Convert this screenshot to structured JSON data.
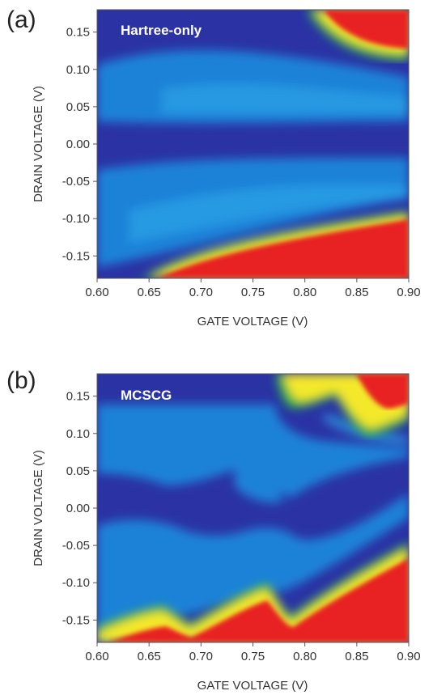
{
  "chart_data": [
    {
      "type": "heatmap",
      "panel": "(a)",
      "annotation": "Hartree-only",
      "xlabel": "GATE VOLTAGE (V)",
      "ylabel": "DRAIN VOLTAGE (V)",
      "xlim": [
        0.6,
        0.9
      ],
      "ylim": [
        -0.18,
        0.18
      ],
      "xticks": [
        0.6,
        0.65,
        0.7,
        0.75,
        0.8,
        0.85,
        0.9
      ],
      "xtick_labels": [
        "0.60",
        "0.65",
        "0.70",
        "0.75",
        "0.80",
        "0.85",
        "0.90"
      ],
      "yticks": [
        0.15,
        0.1,
        0.05,
        0.0,
        -0.05,
        -0.1,
        -0.15
      ],
      "ytick_labels": [
        "0.15",
        "0.10",
        "0.05",
        "0.00",
        "-0.05",
        "-0.10",
        "-0.15"
      ],
      "colormap": [
        "#2a2e9e",
        "#1e63cf",
        "#22a6e8",
        "#1fb34a",
        "#f4e82a",
        "#e8201f"
      ],
      "grid": false,
      "boundaries": {
        "lower_edge": {
          "x": [
            0.6,
            0.63,
            0.65,
            0.7,
            0.75,
            0.8,
            0.85,
            0.9
          ],
          "y": [
            -0.175,
            -0.165,
            -0.15,
            -0.128,
            -0.117,
            -0.107,
            -0.098,
            -0.09
          ]
        },
        "upper_edge": {
          "x": [
            0.81,
            0.83,
            0.85,
            0.87,
            0.9
          ],
          "y": [
            0.18,
            0.155,
            0.135,
            0.12,
            0.11
          ]
        }
      }
    },
    {
      "type": "heatmap",
      "panel": "(b)",
      "annotation": "MCSCG",
      "xlabel": "GATE VOLTAGE (V)",
      "ylabel": "DRAIN VOLTAGE (V)",
      "xlim": [
        0.6,
        0.9
      ],
      "ylim": [
        -0.18,
        0.18
      ],
      "xticks": [
        0.6,
        0.65,
        0.7,
        0.75,
        0.8,
        0.85,
        0.9
      ],
      "xtick_labels": [
        "0.60",
        "0.65",
        "0.70",
        "0.75",
        "0.80",
        "0.85",
        "0.90"
      ],
      "yticks": [
        0.15,
        0.1,
        0.05,
        0.0,
        -0.05,
        -0.1,
        -0.15
      ],
      "ytick_labels": [
        "0.15",
        "0.10",
        "0.05",
        "0.00",
        "-0.05",
        "-0.10",
        "-0.15"
      ],
      "colormap": [
        "#2a2e9e",
        "#1e63cf",
        "#22a6e8",
        "#1fb34a",
        "#f4e82a",
        "#e8201f"
      ],
      "grid": false,
      "boundaries": {
        "lower_edge": {
          "x": [
            0.6,
            0.63,
            0.65,
            0.66,
            0.68,
            0.7,
            0.73,
            0.76,
            0.77,
            0.78,
            0.8,
            0.83,
            0.86,
            0.9
          ],
          "y": [
            -0.178,
            -0.168,
            -0.155,
            -0.15,
            -0.162,
            -0.15,
            -0.135,
            -0.12,
            -0.11,
            -0.118,
            -0.12,
            -0.1,
            -0.082,
            -0.06
          ]
        },
        "upper_edge": {
          "x": [
            0.77,
            0.79,
            0.81,
            0.83,
            0.85,
            0.87,
            0.9
          ],
          "y": [
            0.18,
            0.15,
            0.15,
            0.15,
            0.125,
            0.11,
            0.105
          ]
        }
      }
    }
  ]
}
